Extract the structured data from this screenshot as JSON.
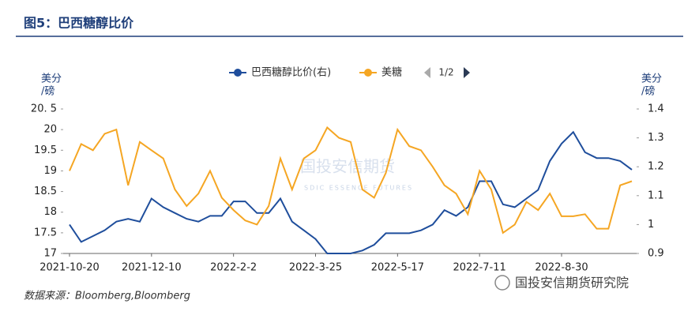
{
  "chart_data": {
    "type": "line",
    "title": "图5：巴西糖醇比价",
    "ylabel": [
      "美分",
      "/磅"
    ],
    "y2label": [
      "美分",
      "/磅"
    ],
    "source": "数据来源：Bloomberg,Bloomberg",
    "watermark": {
      "name": "国投安信期货",
      "sub": "SDIC ESSENCE FUTURES",
      "brand": "国投安信期货研究院"
    },
    "legend_page": "1/2",
    "categories": [
      "2021-10-20",
      null,
      null,
      null,
      null,
      null,
      null,
      "2021-12-10",
      null,
      null,
      null,
      null,
      null,
      null,
      "2022-2-2",
      null,
      null,
      null,
      null,
      null,
      null,
      "2022-3-25",
      null,
      null,
      null,
      null,
      null,
      null,
      "2022-5-17",
      null,
      null,
      null,
      null,
      null,
      null,
      "2022-7-11",
      null,
      null,
      null,
      null,
      null,
      null,
      "2022-8-30",
      null,
      null,
      null,
      null,
      null,
      null
    ],
    "ylim": [
      17,
      20.5
    ],
    "yticks": [
      17,
      17.5,
      18,
      18.5,
      19,
      19.5,
      20,
      {
        "value": 20.5,
        "label": "20. 5"
      }
    ],
    "y2lim": [
      0.9,
      1.4
    ],
    "y2ticks": [
      0.9,
      1,
      1.1,
      1.2,
      1.3,
      1.4
    ],
    "series": [
      {
        "name": "巴西糖醇比价(右)",
        "color": "#1f4e9c",
        "axis": "y2",
        "values": [
          1.0,
          0.94,
          0.96,
          0.98,
          1.01,
          1.02,
          1.01,
          1.09,
          1.06,
          1.04,
          1.02,
          1.01,
          1.03,
          1.03,
          1.08,
          1.08,
          1.04,
          1.04,
          1.09,
          1.01,
          0.98,
          0.95,
          0.9,
          0.9,
          0.9,
          0.91,
          0.93,
          0.97,
          0.97,
          0.97,
          0.98,
          1.0,
          1.05,
          1.03,
          1.06,
          1.15,
          1.15,
          1.07,
          1.06,
          1.09,
          1.12,
          1.22,
          1.28,
          1.32,
          1.25,
          1.23,
          1.23,
          1.22,
          1.19
        ]
      },
      {
        "name": "美糖",
        "color": "#f5a623",
        "values": [
          19.0,
          19.65,
          19.5,
          19.9,
          20.0,
          18.65,
          19.7,
          19.5,
          19.3,
          18.55,
          18.15,
          18.45,
          19.0,
          18.35,
          18.05,
          17.8,
          17.7,
          18.15,
          19.3,
          18.55,
          19.3,
          19.5,
          20.05,
          19.8,
          19.7,
          18.55,
          18.35,
          18.95,
          20.0,
          19.6,
          19.5,
          19.1,
          18.65,
          18.45,
          17.95,
          19.0,
          18.55,
          17.5,
          17.7,
          18.25,
          18.05,
          18.45,
          17.9,
          17.9,
          17.95,
          17.6,
          17.6,
          18.65,
          18.75
        ]
      }
    ]
  }
}
